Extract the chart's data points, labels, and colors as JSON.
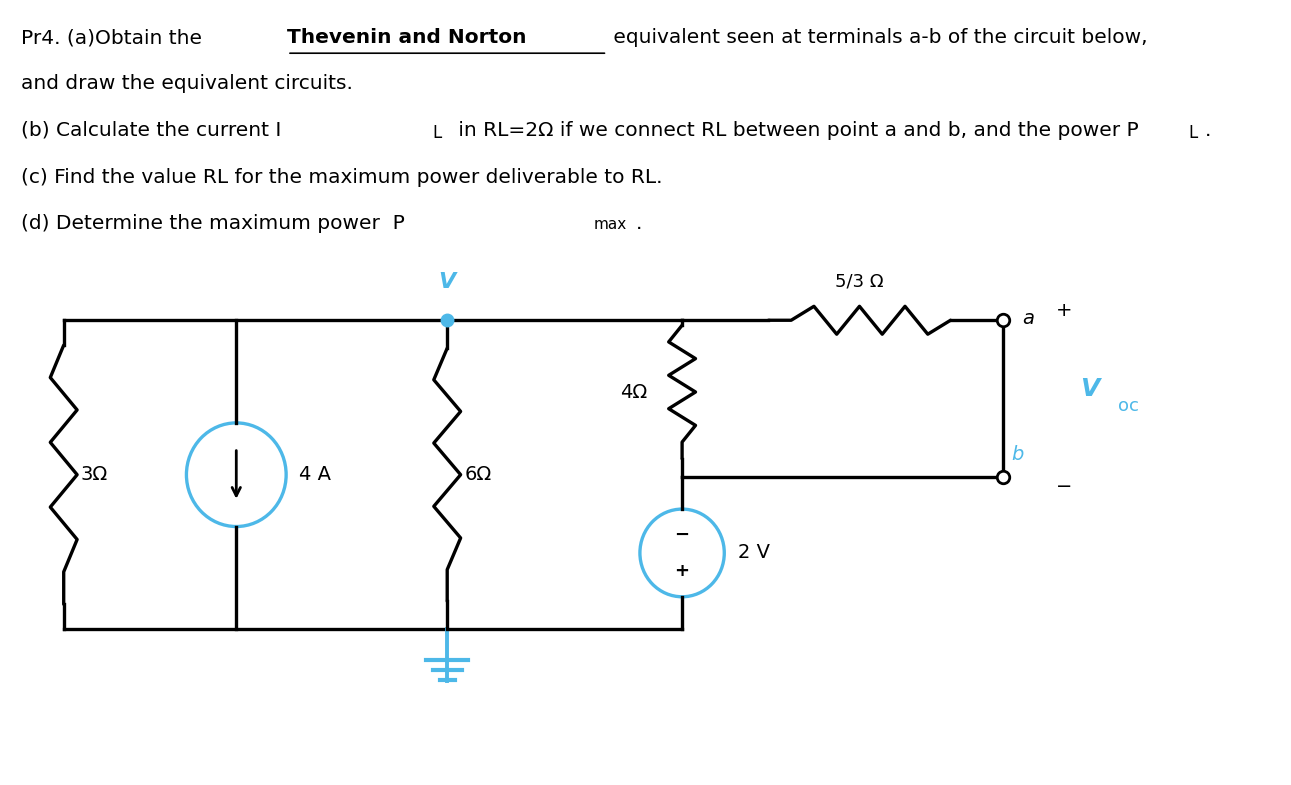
{
  "accent_color": "#4db8e8",
  "text_color": "#000000",
  "bg_color": "#ffffff",
  "fs": 14.5,
  "circuit": {
    "R3ohm_label": "3Ω",
    "R6ohm_label": "6Ω",
    "R4ohm_label": "4Ω",
    "R53_label": "5/3 Ω",
    "I4A_label": "4 A",
    "V2_label": "2 V",
    "V_label": "V",
    "a_label": "a",
    "b_label": "b",
    "Voc_V": "V",
    "Voc_oc": "oc",
    "plus_sign": "+",
    "minus_sign": "−"
  }
}
